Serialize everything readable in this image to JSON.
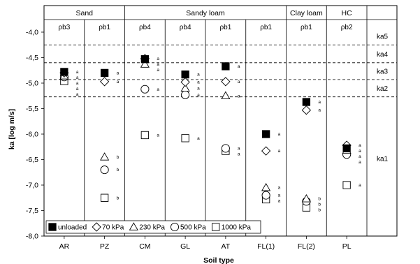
{
  "chart_data": {
    "type": "scatter",
    "title": "",
    "xlabel": "Soil type",
    "ylabel": "ka [log m/s]",
    "ylim": [
      -8.0,
      -4.0
    ],
    "yticks": [
      "-4,0",
      "-4,5",
      "-5,0",
      "-5,5",
      "-6,0",
      "-6,5",
      "-7,0",
      "-7,5",
      "-8,0"
    ],
    "categories": [
      "AR",
      "PZ",
      "CM",
      "GL",
      "AT",
      "FL(1)",
      "FL(2)",
      "PL"
    ],
    "groups": [
      {
        "label": "Sand",
        "from": 0,
        "to": 1
      },
      {
        "label": "Sandy loam",
        "from": 2,
        "to": 5
      },
      {
        "label": "Clay loam",
        "from": 6,
        "to": 6
      },
      {
        "label": "HC",
        "from": 7,
        "to": 7
      }
    ],
    "density_labels": [
      "ρb3",
      "ρb1",
      "ρb4",
      "ρb4",
      "ρb1",
      "ρb1",
      "ρb1",
      "ρb2"
    ],
    "bands": {
      "lines": [
        -4.25,
        -4.6,
        -4.93,
        -5.27
      ],
      "labels": [
        {
          "text": "ka5",
          "y": -4.08
        },
        {
          "text": "ka4",
          "y": -4.43
        },
        {
          "text": "ka3",
          "y": -4.77
        },
        {
          "text": "ka2",
          "y": -5.1
        },
        {
          "text": "ka1",
          "y": -6.48
        }
      ]
    },
    "series": [
      {
        "name": "unloaded",
        "marker": "filled-square",
        "values": [
          -4.78,
          -4.8,
          -4.53,
          -4.83,
          -4.67,
          -6.0,
          -5.37,
          -6.28
        ],
        "letters": [
          "a",
          "a",
          "a",
          "a",
          "a",
          "a",
          "a",
          "a"
        ]
      },
      {
        "name": "70 kPa",
        "marker": "diamond",
        "values": [
          -4.8,
          -4.97,
          -4.52,
          -4.98,
          -4.97,
          -6.33,
          -5.53,
          -6.22
        ],
        "letters": [
          "a",
          "a",
          "a",
          "a",
          "a",
          "a",
          "a",
          "a"
        ]
      },
      {
        "name": "230 kPa",
        "marker": "triangle",
        "values": [
          -4.86,
          -6.45,
          -4.63,
          -5.1,
          -5.25,
          -7.05,
          -7.27,
          -6.32
        ],
        "letters": [
          "a",
          "b",
          "a",
          "a",
          "a",
          "a",
          "b",
          "a"
        ]
      },
      {
        "name": "500 kPa",
        "marker": "circle",
        "values": [
          -4.88,
          -6.7,
          -5.12,
          -5.23,
          -6.28,
          -7.2,
          -7.32,
          -6.4
        ],
        "letters": [
          "a",
          "b",
          "a",
          "a",
          "a",
          "a",
          "b",
          "a"
        ]
      },
      {
        "name": "1000 kPa",
        "marker": "open-square",
        "values": [
          -4.96,
          -7.25,
          -6.02,
          -6.08,
          -6.33,
          -7.28,
          -7.44,
          -7.0
        ],
        "letters": [
          "a",
          "b",
          "a",
          "a",
          "a",
          "a",
          "b",
          "a"
        ]
      }
    ]
  }
}
